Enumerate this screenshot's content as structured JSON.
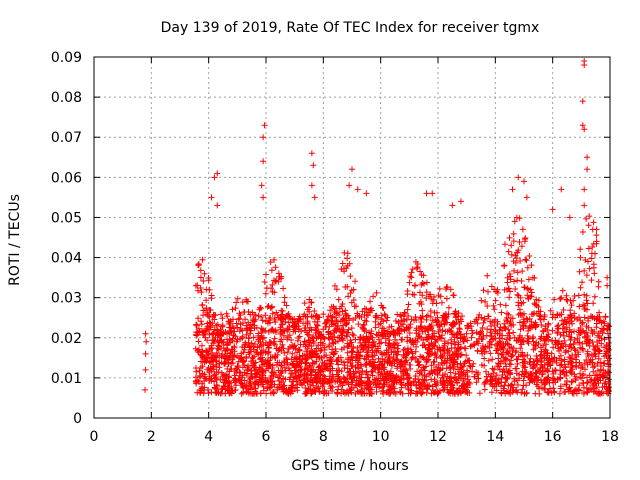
{
  "chart_data": {
    "type": "scatter",
    "title": "Day 139 of 2019, Rate Of TEC Index for receiver tgmx",
    "xlabel": "GPS time / hours",
    "ylabel": "ROTI / TECUs",
    "xlim": [
      0,
      18
    ],
    "ylim": [
      0,
      0.09
    ],
    "x_ticks": [
      "0",
      "2",
      "4",
      "6",
      "8",
      "10",
      "12",
      "14",
      "16",
      "18"
    ],
    "y_ticks": [
      "0",
      "0.01",
      "0.02",
      "0.03",
      "0.04",
      "0.05",
      "0.06",
      "0.07",
      "0.08",
      "0.09"
    ],
    "grid": true,
    "marker": "+",
    "color": "#ff0000",
    "series": [
      {
        "name": "ROTI",
        "coverage": [
          {
            "x_range": [
              1.75,
              1.85
            ],
            "y_range": [
              0.007,
              0.021
            ]
          },
          {
            "x_range": [
              3.55,
              17.97
            ],
            "y_range": [
              0.003,
              0.045
            ]
          }
        ],
        "points": [
          [
            1.78,
            0.007
          ],
          [
            1.8,
            0.012
          ],
          [
            1.8,
            0.016
          ],
          [
            1.82,
            0.019
          ],
          [
            1.8,
            0.021
          ],
          [
            4.2,
            0.06
          ],
          [
            4.3,
            0.061
          ],
          [
            4.1,
            0.055
          ],
          [
            4.3,
            0.053
          ],
          [
            5.9,
            0.07
          ],
          [
            5.95,
            0.073
          ],
          [
            5.9,
            0.064
          ],
          [
            5.85,
            0.058
          ],
          [
            5.9,
            0.055
          ],
          [
            7.6,
            0.066
          ],
          [
            7.65,
            0.063
          ],
          [
            7.6,
            0.058
          ],
          [
            7.7,
            0.055
          ],
          [
            8.9,
            0.058
          ],
          [
            9.0,
            0.062
          ],
          [
            9.2,
            0.057
          ],
          [
            9.5,
            0.056
          ],
          [
            11.6,
            0.056
          ],
          [
            11.8,
            0.056
          ],
          [
            12.5,
            0.053
          ],
          [
            12.8,
            0.054
          ],
          [
            14.6,
            0.057
          ],
          [
            14.8,
            0.06
          ],
          [
            15.0,
            0.059
          ],
          [
            15.1,
            0.055
          ],
          [
            16.3,
            0.057
          ],
          [
            16.0,
            0.052
          ],
          [
            16.6,
            0.05
          ],
          [
            17.1,
            0.089
          ],
          [
            17.1,
            0.088
          ],
          [
            17.05,
            0.079
          ],
          [
            17.05,
            0.073
          ],
          [
            17.1,
            0.072
          ],
          [
            17.2,
            0.065
          ],
          [
            17.2,
            0.062
          ],
          [
            17.1,
            0.057
          ],
          [
            17.1,
            0.053
          ],
          [
            17.4,
            0.047
          ],
          [
            17.9,
            0.035
          ],
          [
            17.9,
            0.033
          ]
        ]
      }
    ]
  }
}
